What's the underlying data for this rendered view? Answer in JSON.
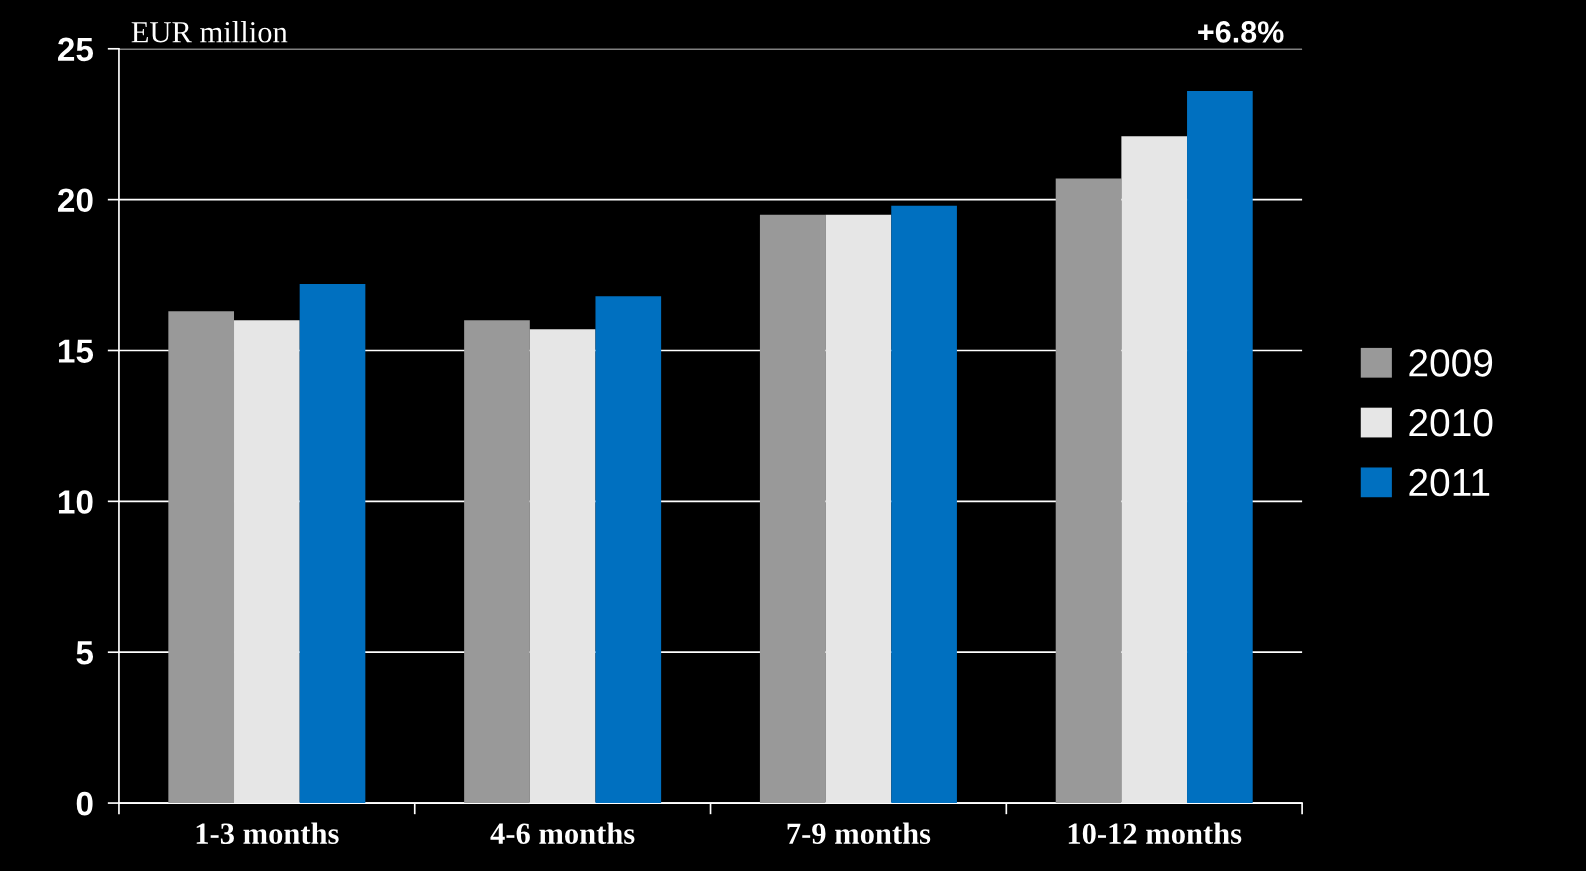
{
  "chart_data": {
    "type": "bar",
    "ylabel": "EUR million",
    "annotations": [
      "+6.8%"
    ],
    "categories": [
      "1-3 months",
      "4-6 months",
      "7-9 months",
      "10-12 months"
    ],
    "series": [
      {
        "name": "2009",
        "color": "#999999",
        "values": [
          16.3,
          16.0,
          19.5,
          20.7
        ]
      },
      {
        "name": "2010",
        "color": "#e6e6e6",
        "values": [
          16.0,
          15.7,
          19.5,
          22.1
        ]
      },
      {
        "name": "2011",
        "color": "#0070c0",
        "values": [
          17.2,
          16.8,
          19.8,
          23.6
        ]
      }
    ],
    "ylim": [
      0,
      25
    ],
    "yticks": [
      0,
      5,
      10,
      15,
      20,
      25
    ],
    "grid": "y",
    "legend": "right"
  }
}
